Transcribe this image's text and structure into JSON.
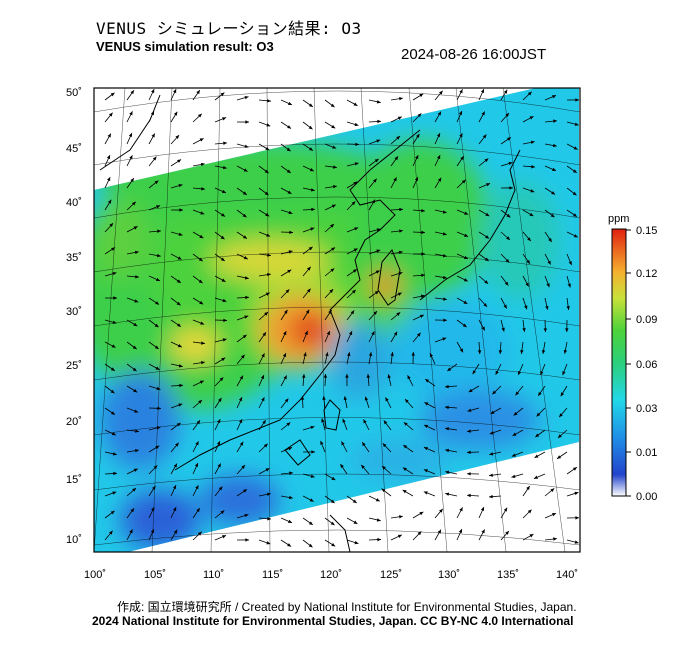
{
  "header": {
    "title_jp": "VENUS シミュレーション結果: O3",
    "title_en": "VENUS simulation result: O3",
    "timestamp": "2024-08-26 16:00JST"
  },
  "axes": {
    "lat_labels": [
      "50˚",
      "45˚",
      "40˚",
      "35˚",
      "30˚",
      "25˚",
      "20˚",
      "15˚",
      "10˚"
    ],
    "lon_labels": [
      "100˚",
      "105˚",
      "110˚",
      "115˚",
      "120˚",
      "125˚",
      "130˚",
      "135˚",
      "140˚"
    ]
  },
  "colorbar": {
    "unit": "ppm",
    "ticks": [
      "0.15",
      "0.12",
      "0.09",
      "0.06",
      "0.03",
      "0.01",
      "0.00"
    ]
  },
  "map_data": {
    "variable": "O3",
    "extent": {
      "lon": [
        100,
        140
      ],
      "lat": [
        10,
        50
      ]
    },
    "wind_field": "on",
    "colors": {
      "low": "#2a5ad8",
      "mid_low": "#22c8e8",
      "mid": "#3cd04a",
      "mid_high": "#f0e040",
      "high": "#e03018"
    }
  },
  "footer": {
    "credit": "作成: 国立環境研究所 / Created by National Institute for Environmental Studies, Japan.",
    "copyright": "2024 National Institute for Environmental Studies, Japan. CC BY-NC 4.0 International"
  }
}
